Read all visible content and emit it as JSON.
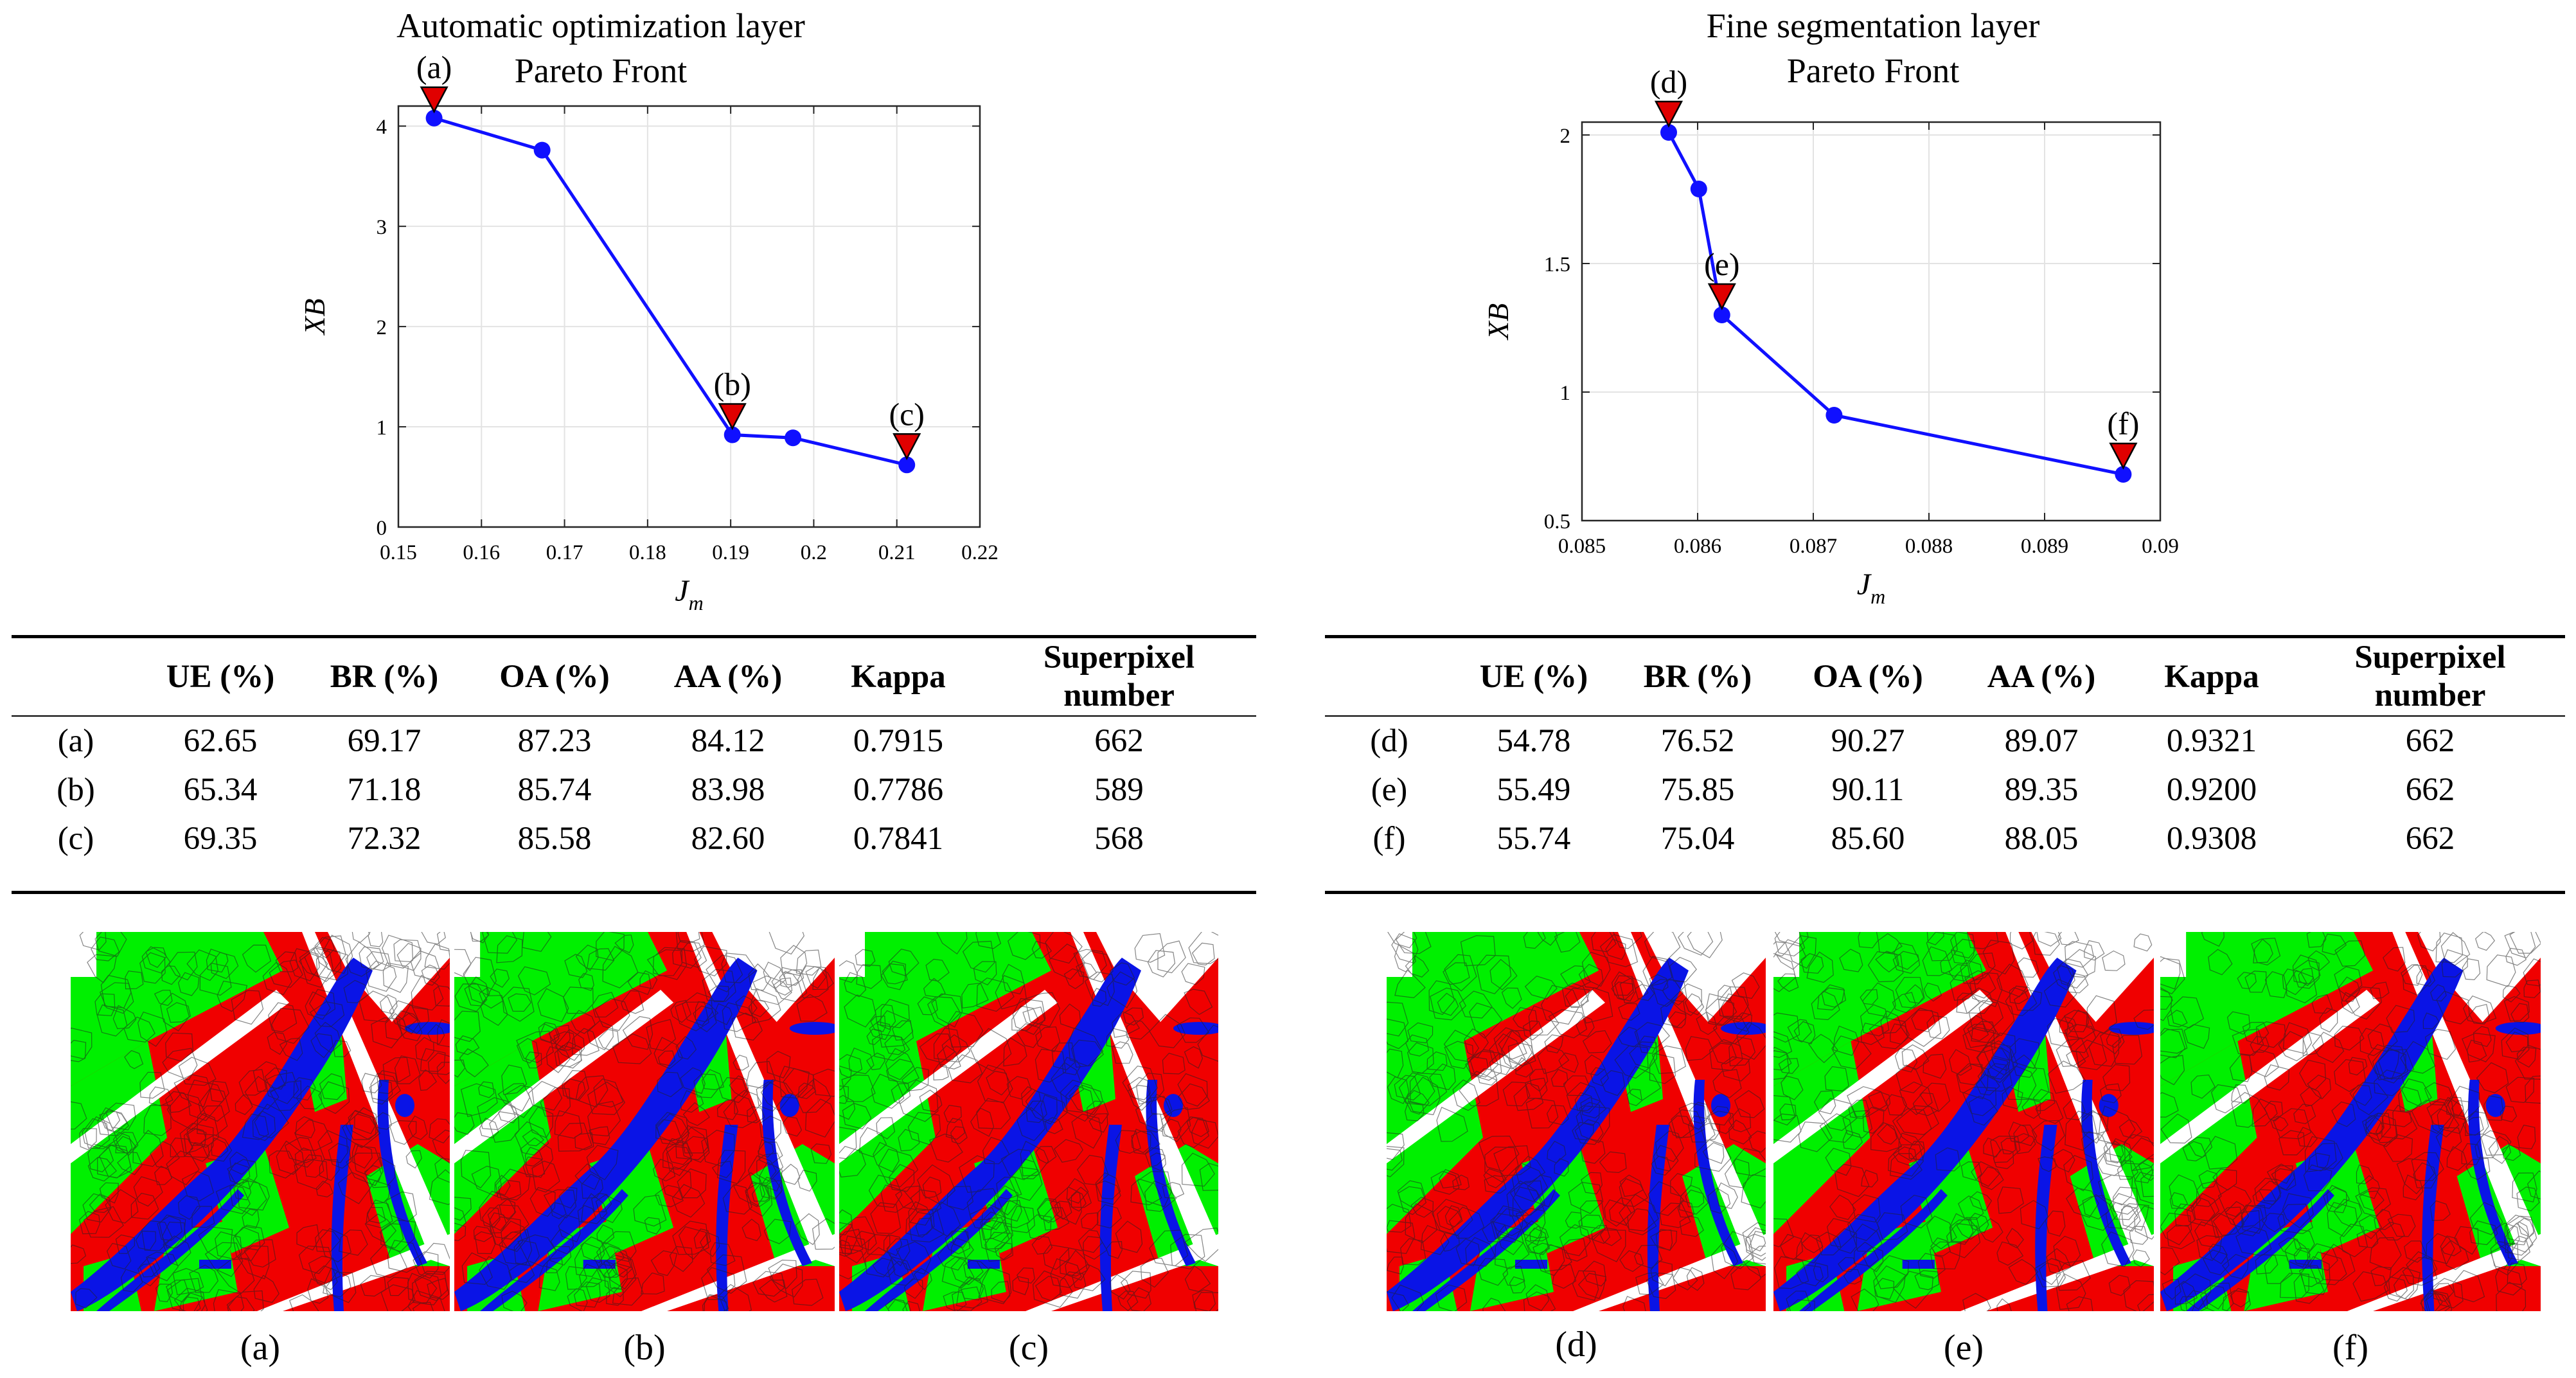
{
  "chart_data": [
    {
      "type": "line",
      "title": "Automatic optimization layer",
      "subtitle": "Pareto Front",
      "xlabel": "J_m",
      "xlabel_main": "J",
      "xlabel_sub": "m",
      "ylabel": "XB",
      "xlim": [
        0.15,
        0.22
      ],
      "ylim": [
        0,
        4.2
      ],
      "xticks": [
        "0.15",
        "0.16",
        "0.17",
        "0.18",
        "0.19",
        "0.2",
        "0.21",
        "0.22"
      ],
      "yticks": [
        "0",
        "1",
        "2",
        "3",
        "4"
      ],
      "series": [
        {
          "name": "Pareto Front",
          "x": [
            0.1543,
            0.1673,
            0.1902,
            0.1975,
            0.2112
          ],
          "y": [
            4.08,
            3.76,
            0.92,
            0.89,
            0.62
          ]
        }
      ],
      "markers": [
        {
          "label": "(a)",
          "x": 0.1543,
          "y": 4.08
        },
        {
          "label": "(b)",
          "x": 0.1902,
          "y": 0.92
        },
        {
          "label": "(c)",
          "x": 0.2112,
          "y": 0.62
        }
      ],
      "line_color": "#1010ff",
      "marker_color": "#e00000"
    },
    {
      "type": "line",
      "title": "Fine segmentation layer",
      "subtitle": "Pareto Front",
      "xlabel": "J_m",
      "xlabel_main": "J",
      "xlabel_sub": "m",
      "ylabel": "XB",
      "xlim": [
        0.085,
        0.09
      ],
      "ylim": [
        0.5,
        2.05
      ],
      "xticks": [
        "0.085",
        "0.086",
        "0.087",
        "0.088",
        "0.089",
        "0.09"
      ],
      "yticks": [
        "0.5",
        "1",
        "1.5",
        "2"
      ],
      "series": [
        {
          "name": "Pareto Front",
          "x": [
            0.08575,
            0.08601,
            0.08621,
            0.08718,
            0.08968
          ],
          "y": [
            2.01,
            1.79,
            1.3,
            0.91,
            0.68
          ]
        }
      ],
      "markers": [
        {
          "label": "(d)",
          "x": 0.08575,
          "y": 2.01
        },
        {
          "label": "(e)",
          "x": 0.08621,
          "y": 1.3
        },
        {
          "label": "(f)",
          "x": 0.08968,
          "y": 0.68
        }
      ],
      "line_color": "#1010ff",
      "marker_color": "#e00000"
    }
  ],
  "tables": {
    "left": {
      "headers": [
        "",
        "UE (%)",
        "BR (%)",
        "OA (%)",
        "AA (%)",
        "Kappa",
        "Superpixel number"
      ],
      "rows": [
        [
          "(a)",
          "62.65",
          "69.17",
          "87.23",
          "84.12",
          "0.7915",
          "662"
        ],
        [
          "(b)",
          "65.34",
          "71.18",
          "85.74",
          "83.98",
          "0.7786",
          "589"
        ],
        [
          "(c)",
          "69.35",
          "72.32",
          "85.58",
          "82.60",
          "0.7841",
          "568"
        ]
      ]
    },
    "right": {
      "headers": [
        "",
        "UE (%)",
        "BR (%)",
        "OA (%)",
        "AA (%)",
        "Kappa",
        "Superpixel number"
      ],
      "rows": [
        [
          "(d)",
          "54.78",
          "76.52",
          "90.27",
          "89.07",
          "0.9321",
          "662"
        ],
        [
          "(e)",
          "55.49",
          "75.85",
          "90.11",
          "89.35",
          "0.9200",
          "662"
        ],
        [
          "(f)",
          "55.74",
          "75.04",
          "85.60",
          "88.05",
          "0.9308",
          "662"
        ]
      ]
    }
  },
  "segmentation": {
    "captions": [
      "(a)",
      "(b)",
      "(c)",
      "(d)",
      "(e)",
      "(f)"
    ],
    "colors": {
      "field": "#00f000",
      "urban": "#f00000",
      "water": "#0a14e6",
      "road": "#ffffff",
      "edge": "#222222"
    }
  }
}
